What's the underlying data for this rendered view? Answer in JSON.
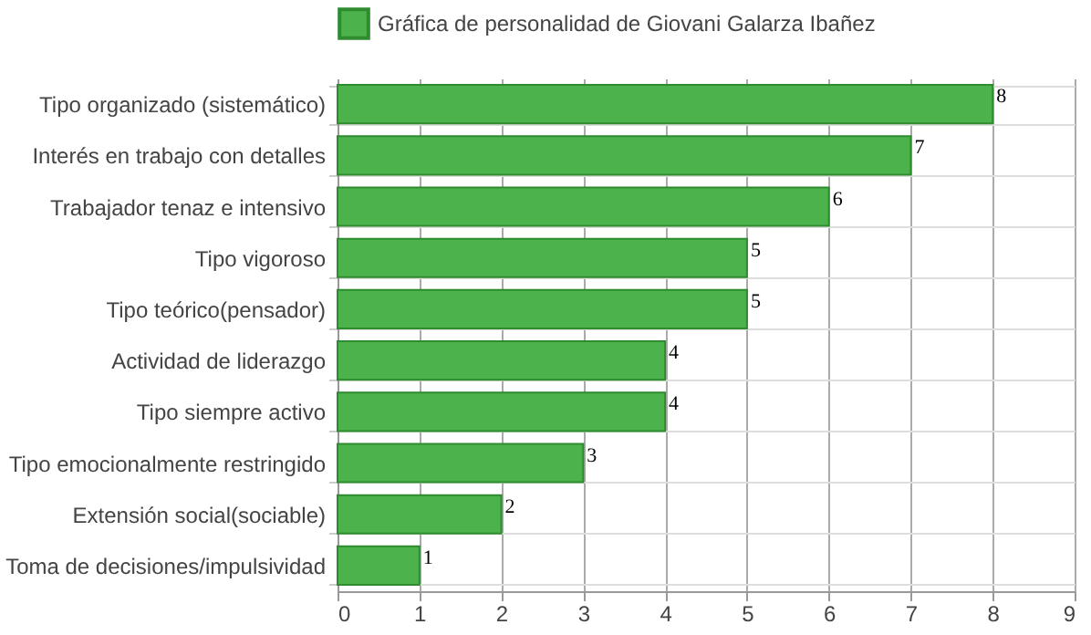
{
  "chart_data": {
    "type": "bar",
    "orientation": "horizontal",
    "categories": [
      "Tipo organizado (sistemático)",
      "Interés en trabajo con detalles",
      "Trabajador tenaz e intensivo",
      "Tipo vigoroso",
      "Tipo teórico(pensador)",
      "Actividad de liderazgo",
      "Tipo siempre activo",
      "Tipo emocionalmente restringido",
      "Extensión social(sociable)",
      "Toma de decisiones/impulsividad"
    ],
    "series": [
      {
        "name": "Gráfica de personalidad de Giovani Galarza Ibañez",
        "color": "#4cb34c",
        "values": [
          8,
          7,
          6,
          5,
          5,
          4,
          4,
          3,
          2,
          1
        ]
      }
    ],
    "xlim": [
      0,
      9
    ],
    "xticks": [
      0,
      1,
      2,
      3,
      4,
      5,
      6,
      7,
      8,
      9
    ],
    "grid": true,
    "legend": "top",
    "data_labels": true
  }
}
